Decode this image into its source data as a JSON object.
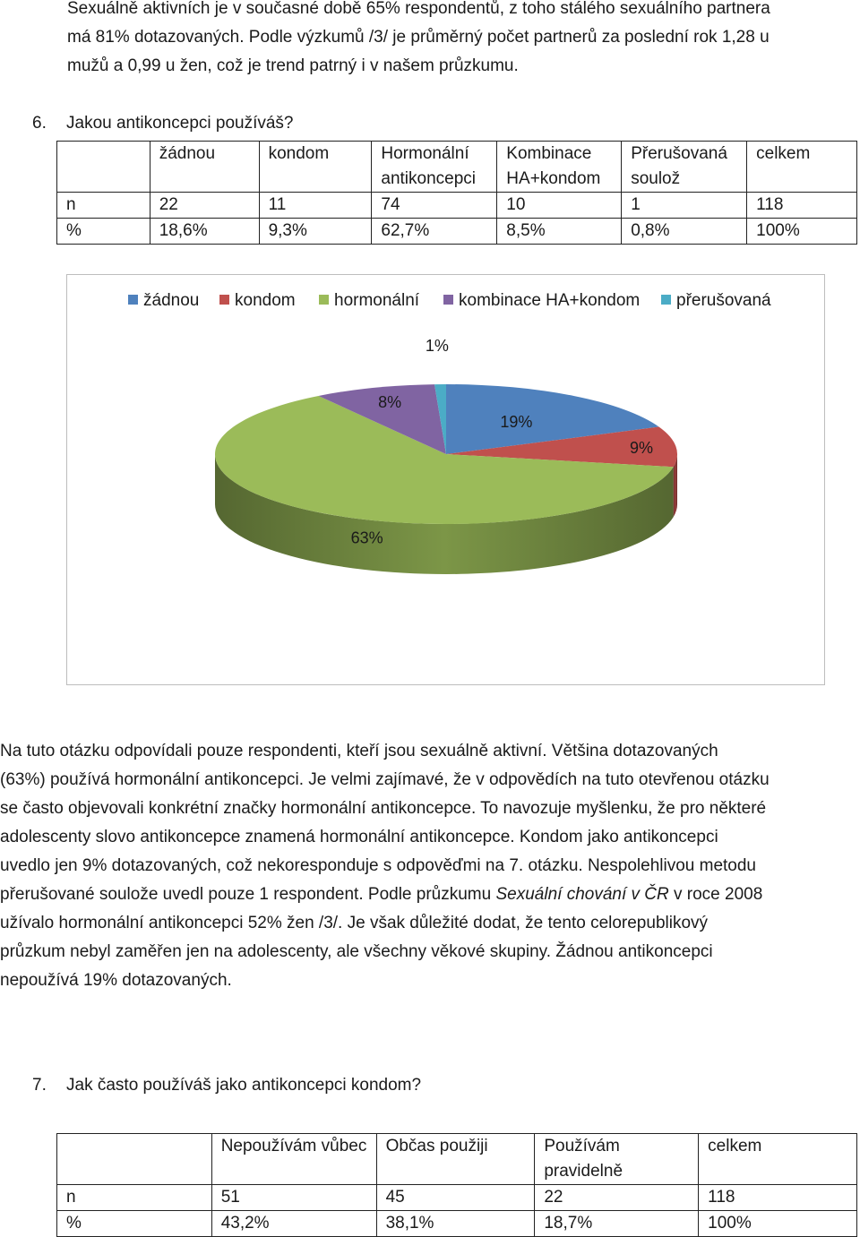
{
  "intro": {
    "line1": "Sexuálně aktivních je v současné době 65% respondentů, z toho stálého sexuálního partnera",
    "line2": "má 81% dotazovaných. Podle výzkumů /3/ je průměrný počet partnerů za poslední rok 1,28 u",
    "line3": "mužů a 0,99 u žen, což je trend patrný i v našem průzkumu."
  },
  "q6": {
    "number": "6.",
    "text": "Jakou antikoncepci používáš?",
    "table": {
      "headers": [
        "",
        "žádnou",
        "kondom",
        "Hormonální antikoncepci",
        "Kombinace HA+kondom",
        "Přerušovaná soulož",
        "celkem"
      ],
      "rows": [
        [
          "n",
          "22",
          "11",
          "74",
          "10",
          "1",
          "118"
        ],
        [
          "%",
          "18,6%",
          "9,3%",
          "62,7%",
          "8,5%",
          "0,8%",
          "100%"
        ]
      ]
    }
  },
  "chart_data": {
    "type": "pie",
    "style": "3d",
    "legend_position": "top",
    "categories": [
      "žádnou",
      "kondom",
      "hormonální",
      "kombinace HA+kondom",
      "přerušovaná"
    ],
    "values": [
      18.6,
      9.3,
      62.7,
      8.5,
      0.8
    ],
    "data_labels": [
      "19%",
      "9%",
      "63%",
      "8%",
      "1%"
    ],
    "colors": [
      "#4F81BD",
      "#C0504D",
      "#9BBB59",
      "#8064A2",
      "#4BACC6"
    ]
  },
  "analysis": {
    "l1": "Na tuto otázku odpovídali pouze respondenti, kteří jsou sexuálně aktivní. Většina dotazovaných",
    "l2": "(63%) používá hormonální antikoncepci. Je velmi zajímavé, že v odpovědích na tuto otevřenou otázku",
    "l3": "se často objevovali konkrétní značky hormonální antikoncepce. To navozuje myšlenku, že pro některé",
    "l4": "adolescenty slovo antikoncepce znamená hormonální antikoncepce. Kondom jako antikoncepci",
    "l5": "uvedlo jen 9% dotazovaných, což nekoresponduje s odpověďmi na 7. otázku. Nespolehlivou metodu",
    "l6a": "přerušované soulože uvedl pouze 1 respondent. Podle průzkumu ",
    "l6b": "Sexuální chování v ČR",
    "l6c": " v roce 2008",
    "l7": "užívalo hormonální antikoncepci 52% žen /3/. Je však důležité dodat, že tento celorepublikový",
    "l8": "průzkum nebyl zaměřen jen na adolescenty, ale všechny věkové skupiny. Žádnou antikoncepci",
    "l9": "nepoužívá 19% dotazovaných."
  },
  "q7": {
    "number": "7.",
    "text": "Jak často používáš jako antikoncepci kondom?",
    "table": {
      "headers": [
        "",
        "Nepoužívám vůbec",
        "Občas použiji",
        "Používám pravidelně",
        "celkem"
      ],
      "rows": [
        [
          "n",
          "51",
          "45",
          "22",
          "118"
        ],
        [
          "%",
          "43,2%",
          "38,1%",
          "18,7%",
          "100%"
        ]
      ]
    }
  }
}
